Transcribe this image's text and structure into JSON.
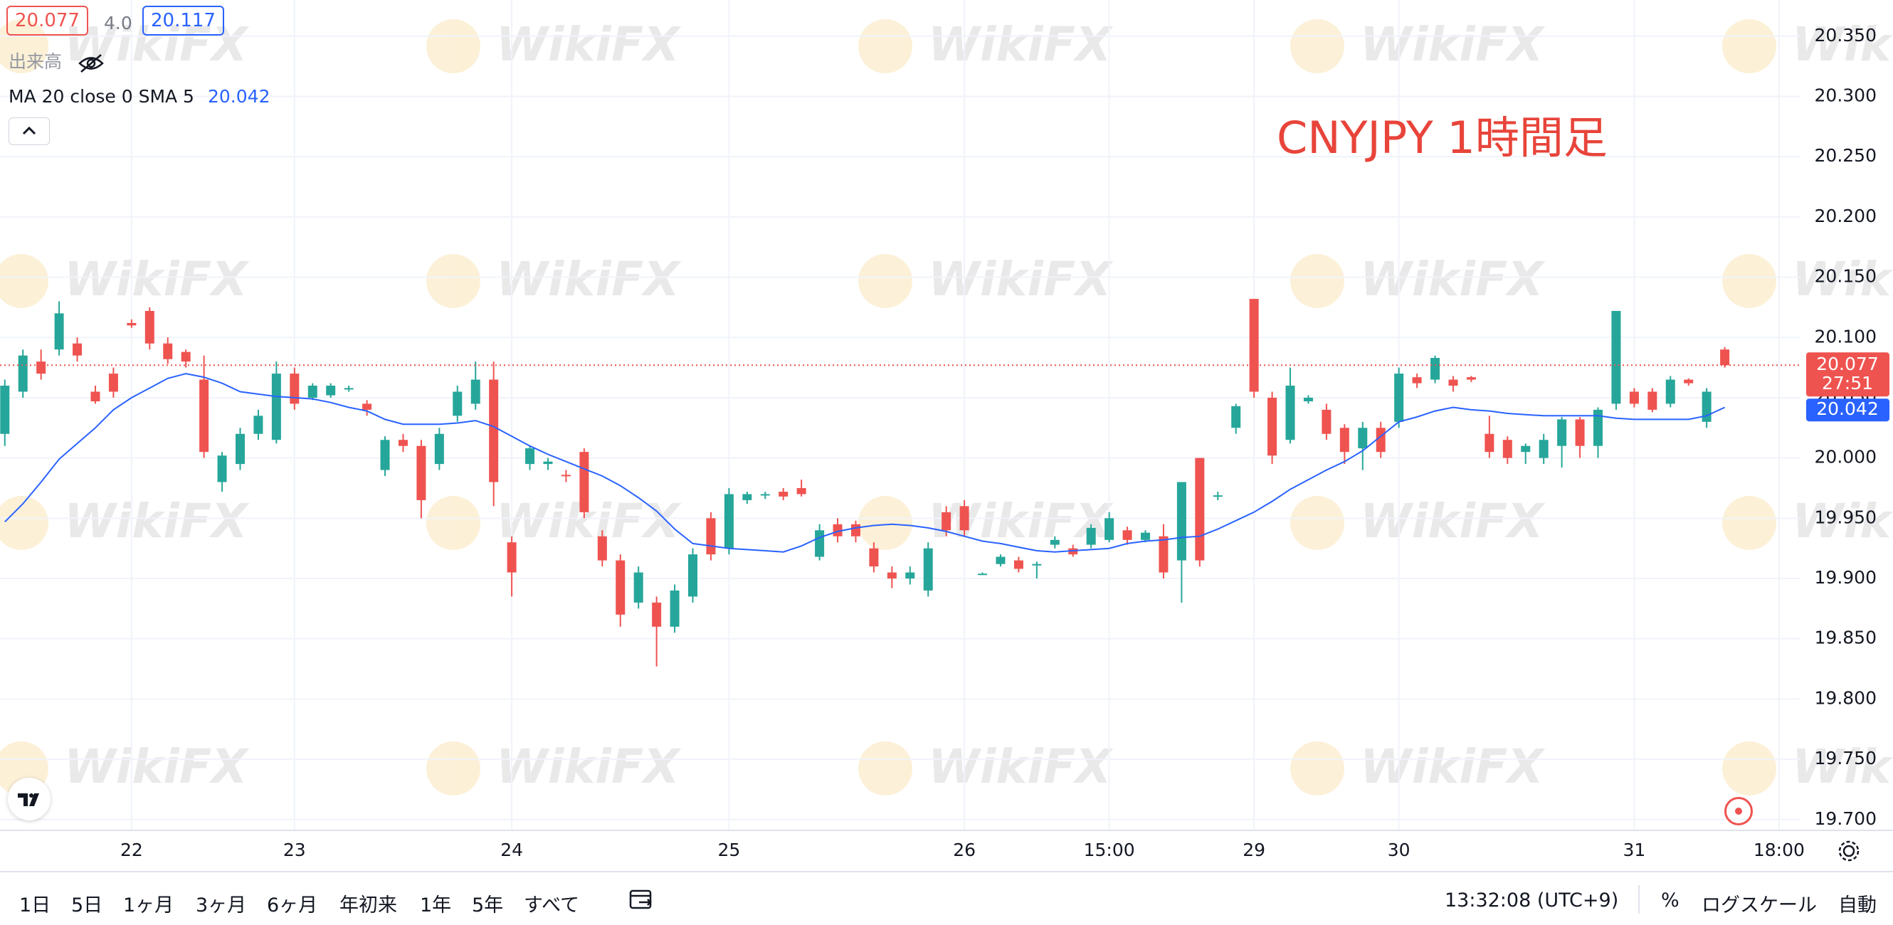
{
  "chart_data": {
    "type": "candlestick",
    "title": "CNYJPY 1時間足",
    "categories": [
      null,
      null,
      null,
      null,
      null,
      null,
      null,
      "22",
      null,
      null,
      null,
      null,
      null,
      null,
      null,
      null,
      "23",
      null,
      null,
      null,
      null,
      null,
      null,
      null,
      null,
      null,
      null,
      null,
      "24",
      null,
      null,
      null,
      null,
      null,
      null,
      null,
      null,
      null,
      null,
      null,
      "25",
      null,
      null,
      null,
      null,
      null,
      null,
      null,
      null,
      null,
      null,
      null,
      null,
      "26",
      null,
      null,
      null,
      null,
      null,
      null,
      null,
      "15:00",
      null,
      null,
      null,
      null,
      null,
      null,
      null,
      "29",
      null,
      null,
      null,
      null,
      null,
      null,
      null,
      "30",
      null,
      null,
      null,
      null,
      null,
      null,
      null,
      null,
      null,
      null,
      null,
      null,
      "31",
      null,
      null,
      null,
      null,
      null,
      null,
      null,
      "18:00"
    ],
    "open": [
      20.02,
      20.055,
      20.08,
      20.09,
      20.095,
      20.055,
      20.07,
      20.112,
      20.122,
      20.095,
      20.088,
      20.065,
      19.98,
      19.995,
      20.02,
      20.015,
      20.07,
      20.05,
      20.052,
      20.057,
      20.045,
      19.99,
      20.015,
      20.01,
      19.995,
      20.035,
      20.045,
      20.065,
      19.93,
      19.995,
      19.995,
      19.986,
      20.005,
      19.935,
      19.915,
      19.88,
      19.88,
      19.86,
      19.885,
      19.95,
      19.925,
      19.965,
      19.969,
      19.972,
      19.975,
      19.918,
      19.945,
      19.945,
      19.925,
      19.905,
      19.9,
      19.89,
      19.955,
      19.96,
      19.904,
      19.912,
      19.915,
      19.912,
      19.928,
      19.925,
      19.928,
      19.932,
      19.94,
      19.932,
      19.935,
      19.915,
      20.0,
      19.968,
      20.025,
      20.132,
      20.05,
      20.015,
      20.047,
      20.04,
      20.025,
      20.008,
      20.025,
      20.03,
      20.067,
      20.065,
      20.065,
      20.067,
      20.02,
      20.015,
      20.005,
      20.0,
      20.01,
      20.032,
      20.01,
      20.045,
      20.055,
      20.055,
      20.045,
      20.065,
      20.03,
      20.09,
      null,
      null,
      null
    ],
    "high": [
      20.065,
      20.09,
      20.09,
      20.13,
      20.1,
      20.06,
      20.075,
      20.115,
      20.125,
      20.1,
      20.09,
      20.085,
      20.005,
      20.025,
      20.04,
      20.08,
      20.075,
      20.062,
      20.062,
      20.06,
      20.048,
      20.018,
      20.02,
      20.015,
      20.025,
      20.06,
      20.08,
      20.08,
      19.935,
      20.01,
      20.0,
      19.99,
      20.008,
      19.94,
      19.92,
      19.91,
      19.885,
      19.895,
      19.925,
      19.955,
      19.975,
      19.972,
      19.972,
      19.975,
      19.982,
      19.945,
      19.95,
      19.948,
      19.93,
      19.91,
      19.91,
      19.93,
      19.96,
      19.965,
      19.905,
      19.92,
      19.918,
      19.914,
      19.935,
      19.928,
      19.945,
      19.955,
      19.943,
      19.94,
      19.945,
      19.98,
      20.0,
      19.972,
      20.045,
      20.132,
      20.055,
      20.075,
      20.052,
      20.045,
      20.028,
      20.03,
      20.03,
      20.075,
      20.07,
      20.085,
      20.068,
      20.068,
      20.035,
      20.018,
      20.012,
      20.02,
      20.034,
      20.034,
      20.042,
      20.122,
      20.058,
      20.058,
      20.068,
      20.066,
      20.058,
      20.092,
      null,
      null,
      null
    ],
    "low": [
      20.01,
      20.05,
      20.065,
      20.085,
      20.08,
      20.045,
      20.05,
      20.108,
      20.09,
      20.078,
      20.075,
      20.0,
      19.972,
      19.99,
      20.015,
      20.012,
      20.04,
      20.048,
      20.05,
      20.055,
      20.035,
      19.985,
      20.005,
      19.95,
      19.99,
      20.03,
      20.04,
      19.96,
      19.885,
      19.99,
      19.99,
      19.98,
      19.95,
      19.91,
      19.86,
      19.875,
      19.827,
      19.855,
      19.88,
      19.915,
      19.92,
      19.962,
      19.966,
      19.965,
      19.968,
      19.915,
      19.93,
      19.93,
      19.905,
      19.892,
      19.895,
      19.885,
      19.935,
      19.935,
      19.903,
      19.91,
      19.905,
      19.9,
      19.925,
      19.918,
      19.925,
      19.93,
      19.928,
      19.93,
      19.9,
      19.88,
      19.91,
      19.965,
      20.02,
      20.05,
      19.995,
      20.012,
      20.045,
      20.015,
      19.995,
      19.99,
      20.0,
      20.025,
      20.058,
      20.062,
      20.055,
      20.063,
      20.0,
      19.995,
      19.995,
      19.995,
      19.992,
      20.0,
      20.0,
      20.04,
      20.042,
      20.038,
      20.042,
      20.06,
      20.025,
      20.075,
      null,
      null,
      null
    ],
    "close": [
      20.06,
      20.085,
      20.07,
      20.12,
      20.085,
      20.047,
      20.055,
      20.11,
      20.095,
      20.082,
      20.08,
      20.005,
      20.002,
      20.02,
      20.035,
      20.07,
      20.045,
      20.06,
      20.06,
      20.058,
      20.04,
      20.015,
      20.01,
      19.965,
      20.02,
      20.055,
      20.065,
      19.98,
      19.905,
      20.008,
      19.997,
      19.985,
      19.955,
      19.915,
      19.87,
      19.905,
      19.86,
      19.89,
      19.92,
      19.92,
      19.97,
      19.97,
      19.97,
      19.968,
      19.97,
      19.94,
      19.935,
      19.935,
      19.91,
      19.9,
      19.905,
      19.925,
      19.94,
      19.94,
      19.904,
      19.918,
      19.908,
      19.912,
      19.932,
      19.92,
      19.942,
      19.95,
      19.932,
      19.938,
      19.905,
      19.98,
      19.915,
      19.969,
      20.043,
      20.055,
      20.002,
      20.06,
      20.05,
      20.02,
      20.005,
      20.025,
      20.005,
      20.07,
      20.062,
      20.083,
      20.06,
      20.065,
      20.005,
      20.0,
      20.01,
      20.015,
      20.032,
      20.01,
      20.04,
      20.122,
      20.045,
      20.04,
      20.065,
      20.062,
      20.055,
      20.077,
      null,
      null,
      null
    ],
    "up_color": "#26a69a",
    "down_color": "#ef5350",
    "series": [
      {
        "name": "MA 20 close 0 SMA 5",
        "color": "#2962ff",
        "values": [
          19.947,
          19.962,
          19.98,
          19.999,
          20.012,
          20.025,
          20.04,
          20.05,
          20.058,
          20.066,
          20.07,
          20.067,
          20.062,
          20.055,
          20.053,
          20.051,
          20.05,
          20.049,
          20.046,
          20.042,
          20.039,
          20.032,
          20.028,
          20.028,
          20.028,
          20.029,
          20.031,
          20.026,
          20.018,
          20.01,
          20.003,
          19.997,
          19.991,
          19.985,
          19.977,
          19.967,
          19.956,
          19.941,
          19.929,
          19.927,
          19.925,
          19.924,
          19.923,
          19.922,
          19.927,
          19.934,
          19.939,
          19.942,
          19.944,
          19.945,
          19.944,
          19.942,
          19.939,
          19.935,
          19.931,
          19.929,
          19.926,
          19.923,
          19.922,
          19.923,
          19.924,
          19.925,
          19.929,
          19.931,
          19.932,
          19.934,
          19.935,
          19.941,
          19.948,
          19.955,
          19.964,
          19.974,
          19.982,
          19.99,
          19.997,
          20.006,
          20.018,
          20.03,
          20.034,
          20.039,
          20.042,
          20.04,
          20.039,
          20.037,
          20.036,
          20.035,
          20.035,
          20.035,
          20.035,
          20.033,
          20.032,
          20.032,
          20.032,
          20.032,
          20.035,
          20.042,
          null,
          null,
          null
        ]
      }
    ],
    "last_price": 20.077,
    "last_price_color": "#ef5350",
    "ylim": [
      19.691,
      20.38
    ],
    "yticks": [
      {
        "value": 19.7,
        "label": "19.700"
      },
      {
        "value": 19.75,
        "label": "19.750"
      },
      {
        "value": 19.8,
        "label": "19.800"
      },
      {
        "value": 19.85,
        "label": "19.850"
      },
      {
        "value": 19.9,
        "label": "19.900"
      },
      {
        "value": 19.95,
        "label": "19.950"
      },
      {
        "value": 20.0,
        "label": "20.000"
      },
      {
        "value": 20.05,
        "label": "20.050"
      },
      {
        "value": 20.1,
        "label": "20.100"
      },
      {
        "value": 20.15,
        "label": "20.150"
      },
      {
        "value": 20.2,
        "label": "20.200"
      },
      {
        "value": 20.25,
        "label": "20.250"
      },
      {
        "value": 20.3,
        "label": "20.300"
      },
      {
        "value": 20.35,
        "label": "20.350"
      }
    ],
    "grid": true
  },
  "ui": {
    "spread": "4.0",
    "ask": "20.117",
    "volume_label": "出来高",
    "countdown": "27:51",
    "watermark": "WikiFX",
    "ranges": [
      "1日",
      "5日",
      "1ヶ月",
      "3ヶ月",
      "6ヶ月",
      "年初来",
      "1年",
      "5年",
      "すべて"
    ],
    "clock": "13:32:08 (UTC+9)",
    "percent": "%",
    "log_scale": "ログスケール",
    "auto": "自動"
  }
}
